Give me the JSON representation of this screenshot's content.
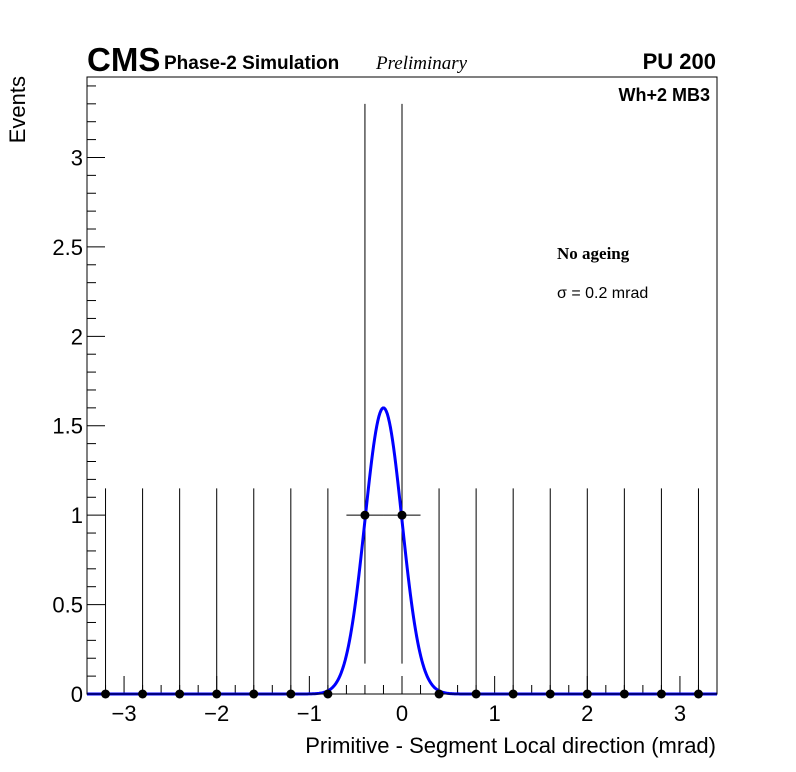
{
  "header": {
    "brand": "CMS",
    "subtitle": "Phase-2 Simulation",
    "status": "Preliminary",
    "pileup": "PU 200"
  },
  "annotations": {
    "station": "Wh+2 MB3",
    "condition": "No ageing",
    "sigma": "σ = 0.2 mrad"
  },
  "chart_data": {
    "type": "scatter",
    "title": "",
    "xlabel": "Primitive - Segment Local direction (mrad)",
    "ylabel": "Events",
    "xlim": [
      -3.4,
      3.4
    ],
    "ylim": [
      0,
      3.45
    ],
    "x_ticks": [
      -3,
      -2,
      -1,
      0,
      1,
      2,
      3
    ],
    "x_tick_labels": [
      "−3",
      "−2",
      "−1",
      "0",
      "1",
      "2",
      "3"
    ],
    "y_ticks": [
      0,
      0.5,
      1,
      1.5,
      2,
      2.5,
      3
    ],
    "y_tick_labels": [
      "0",
      "0.5",
      "1",
      "1.5",
      "2",
      "2.5",
      "3"
    ],
    "bin_width": 0.4,
    "series": [
      {
        "name": "data",
        "x": [
          -3.2,
          -2.8,
          -2.4,
          -2.0,
          -1.6,
          -1.2,
          -0.8,
          -0.4,
          0.0,
          0.4,
          0.8,
          1.2,
          1.6,
          2.0,
          2.4,
          2.8,
          3.2
        ],
        "y": [
          0,
          0,
          0,
          0,
          0,
          0,
          0,
          1,
          1,
          0,
          0,
          0,
          0,
          0,
          0,
          0,
          0
        ],
        "err_up": [
          1.15,
          1.15,
          1.15,
          1.15,
          1.15,
          1.15,
          1.15,
          2.3,
          2.3,
          1.15,
          1.15,
          1.15,
          1.15,
          1.15,
          1.15,
          1.15,
          1.15
        ],
        "err_down": [
          0,
          0,
          0,
          0,
          0,
          0,
          0,
          0.83,
          0.83,
          0,
          0,
          0,
          0,
          0,
          0,
          0,
          0
        ]
      }
    ],
    "fit": {
      "name": "gaussian fit",
      "color": "#0000ff",
      "amplitude": 1.6,
      "mean": -0.2,
      "sigma": 0.2
    }
  }
}
